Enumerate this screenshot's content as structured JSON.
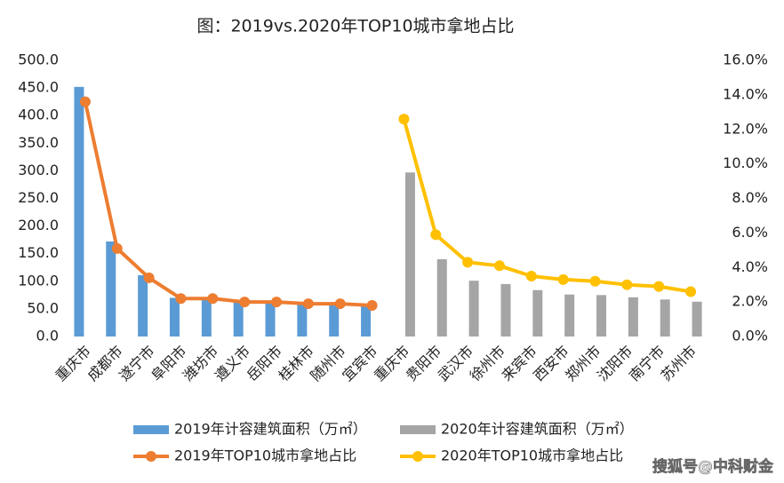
{
  "chart_data": {
    "type": "bar-line",
    "title": "图：2019vs.2020年TOP10城市拿地占比",
    "categories": [
      "重庆市",
      "成都市",
      "遂宁市",
      "阜阳市",
      "潍坊市",
      "遵义市",
      "岳阳市",
      "桂林市",
      "随州市",
      "宜宾市",
      "重庆市",
      "贵阳市",
      "武汉市",
      "徐州市",
      "来宾市",
      "西安市",
      "郑州市",
      "沈阳市",
      "南宁市",
      "苏州市"
    ],
    "series": [
      {
        "name": "2019年计容建筑面积（万㎡）",
        "type": "bar",
        "color": "#5b9bd5",
        "values": [
          452,
          172,
          111,
          70,
          68,
          64,
          63,
          62,
          60,
          58,
          null,
          null,
          null,
          null,
          null,
          null,
          null,
          null,
          null,
          null
        ]
      },
      {
        "name": "2020年计容建筑面积（万㎡）",
        "type": "bar",
        "color": "#a5a5a5",
        "values": [
          null,
          null,
          null,
          null,
          null,
          null,
          null,
          null,
          null,
          null,
          297,
          140,
          101,
          95,
          84,
          76,
          75,
          71,
          67,
          63
        ]
      },
      {
        "name": "2019年TOP10城市拿地占比",
        "type": "line",
        "axis": "y2",
        "color": "#ed7d31",
        "values": [
          13.6,
          5.1,
          3.4,
          2.2,
          2.2,
          2.0,
          2.0,
          1.9,
          1.9,
          1.8,
          null,
          null,
          null,
          null,
          null,
          null,
          null,
          null,
          null,
          null
        ]
      },
      {
        "name": "2020年TOP10城市拿地占比",
        "type": "line",
        "axis": "y2",
        "color": "#ffc000",
        "values": [
          null,
          null,
          null,
          null,
          null,
          null,
          null,
          null,
          null,
          null,
          12.6,
          5.9,
          4.3,
          4.1,
          3.5,
          3.3,
          3.2,
          3.0,
          2.9,
          2.6
        ]
      }
    ],
    "ylim": [
      0,
      500
    ],
    "yticks": [
      {
        "value": 0,
        "label": "0.0"
      },
      {
        "value": 50,
        "label": "50.0"
      },
      {
        "value": 100,
        "label": "100.0"
      },
      {
        "value": 150,
        "label": "150.0"
      },
      {
        "value": 200,
        "label": "200.0"
      },
      {
        "value": 250,
        "label": "250.0"
      },
      {
        "value": 300,
        "label": "300.0"
      },
      {
        "value": 350,
        "label": "350.0"
      },
      {
        "value": 400,
        "label": "400.0"
      },
      {
        "value": 450,
        "label": "450.0"
      },
      {
        "value": 500,
        "label": "500.0"
      }
    ],
    "y2lim": [
      0,
      16
    ],
    "y2ticks": [
      {
        "value": 0,
        "label": "0.0%"
      },
      {
        "value": 2,
        "label": "2.0%"
      },
      {
        "value": 4,
        "label": "4.0%"
      },
      {
        "value": 6,
        "label": "6.0%"
      },
      {
        "value": 8,
        "label": "8.0%"
      },
      {
        "value": 10,
        "label": "10.0%"
      },
      {
        "value": 12,
        "label": "12.0%"
      },
      {
        "value": 14,
        "label": "14.0%"
      },
      {
        "value": 16,
        "label": "16.0%"
      }
    ],
    "grid": false,
    "legend": "bottom",
    "watermark": "搜狐号@中科财金"
  }
}
